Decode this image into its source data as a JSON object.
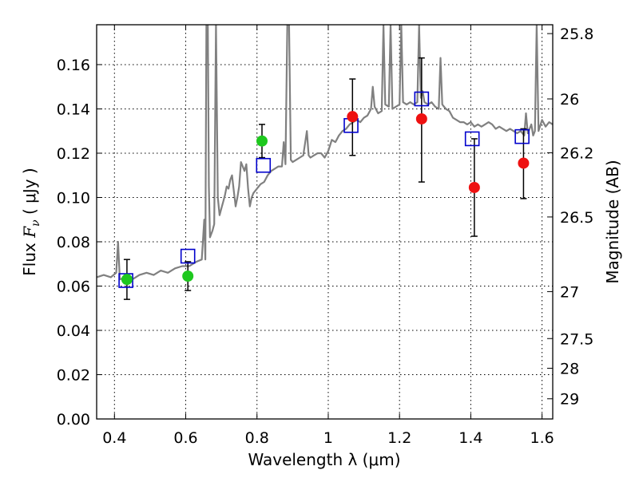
{
  "chart_data": {
    "type": "scatter",
    "xlabel": "Wavelength  λ (μm)",
    "ylabel_prefix": "Flux  ",
    "ylabel_symbol": "F",
    "ylabel_sub": "ν",
    "ylabel_suffix": "  ( μJy )",
    "ylabel_right": "Magnitude (AB)",
    "xlim": [
      0.35,
      1.63
    ],
    "ylim": [
      0.0,
      0.178
    ],
    "grid": true,
    "x_ticks": [
      0.4,
      0.6,
      0.8,
      1.0,
      1.2,
      1.4,
      1.6
    ],
    "x_tick_labels": [
      "0.4",
      "0.6",
      "0.8",
      "1",
      "1.2",
      "1.4",
      "1.6"
    ],
    "y_ticks": [
      0.0,
      0.02,
      0.04,
      0.06,
      0.08,
      0.1,
      0.12,
      0.14,
      0.16
    ],
    "y_tick_labels": [
      "0.00",
      "0.02",
      "0.04",
      "0.06",
      "0.08",
      "0.10",
      "0.12",
      "0.14",
      "0.16"
    ],
    "right_ticks": [
      {
        "label": "25.8",
        "flux": 0.174
      },
      {
        "label": "26",
        "flux": 0.1445
      },
      {
        "label": "26.2",
        "flux": 0.1202
      },
      {
        "label": "26.5",
        "flux": 0.0912
      },
      {
        "label": "27",
        "flux": 0.0575
      },
      {
        "label": "27.5",
        "flux": 0.0363
      },
      {
        "label": "28",
        "flux": 0.0229
      },
      {
        "label": "29",
        "flux": 0.0091
      }
    ],
    "colors": {
      "spectrum": "#808080",
      "green_points": "#1ec81e",
      "red_points": "#ee1111",
      "squares": "#0000cc",
      "errorbars": "#000000",
      "grid": "#000000"
    },
    "spectrum": [
      [
        0.35,
        0.064
      ],
      [
        0.37,
        0.065
      ],
      [
        0.39,
        0.064
      ],
      [
        0.405,
        0.066
      ],
      [
        0.41,
        0.08
      ],
      [
        0.415,
        0.063
      ],
      [
        0.43,
        0.064
      ],
      [
        0.45,
        0.063
      ],
      [
        0.47,
        0.065
      ],
      [
        0.49,
        0.066
      ],
      [
        0.51,
        0.065
      ],
      [
        0.53,
        0.067
      ],
      [
        0.55,
        0.066
      ],
      [
        0.57,
        0.068
      ],
      [
        0.59,
        0.069
      ],
      [
        0.61,
        0.069
      ],
      [
        0.63,
        0.071
      ],
      [
        0.645,
        0.072
      ],
      [
        0.652,
        0.09
      ],
      [
        0.655,
        0.072
      ],
      [
        0.658,
        0.178
      ],
      [
        0.662,
        0.178
      ],
      [
        0.665,
        0.105
      ],
      [
        0.668,
        0.082
      ],
      [
        0.675,
        0.085
      ],
      [
        0.68,
        0.088
      ],
      [
        0.685,
        0.178
      ],
      [
        0.69,
        0.1
      ],
      [
        0.695,
        0.092
      ],
      [
        0.7,
        0.095
      ],
      [
        0.705,
        0.098
      ],
      [
        0.71,
        0.101
      ],
      [
        0.715,
        0.105
      ],
      [
        0.72,
        0.104
      ],
      [
        0.725,
        0.108
      ],
      [
        0.73,
        0.11
      ],
      [
        0.735,
        0.103
      ],
      [
        0.74,
        0.096
      ],
      [
        0.745,
        0.1
      ],
      [
        0.75,
        0.105
      ],
      [
        0.755,
        0.116
      ],
      [
        0.76,
        0.114
      ],
      [
        0.765,
        0.112
      ],
      [
        0.77,
        0.115
      ],
      [
        0.775,
        0.104
      ],
      [
        0.78,
        0.096
      ],
      [
        0.785,
        0.1
      ],
      [
        0.79,
        0.102
      ],
      [
        0.8,
        0.104
      ],
      [
        0.81,
        0.106
      ],
      [
        0.82,
        0.107
      ],
      [
        0.83,
        0.11
      ],
      [
        0.84,
        0.112
      ],
      [
        0.85,
        0.113
      ],
      [
        0.86,
        0.114
      ],
      [
        0.87,
        0.114
      ],
      [
        0.875,
        0.125
      ],
      [
        0.88,
        0.115
      ],
      [
        0.885,
        0.178
      ],
      [
        0.89,
        0.178
      ],
      [
        0.895,
        0.117
      ],
      [
        0.9,
        0.116
      ],
      [
        0.91,
        0.117
      ],
      [
        0.92,
        0.118
      ],
      [
        0.93,
        0.119
      ],
      [
        0.94,
        0.13
      ],
      [
        0.945,
        0.119
      ],
      [
        0.95,
        0.118
      ],
      [
        0.96,
        0.119
      ],
      [
        0.97,
        0.12
      ],
      [
        0.98,
        0.12
      ],
      [
        0.99,
        0.118
      ],
      [
        1.0,
        0.121
      ],
      [
        1.01,
        0.126
      ],
      [
        1.02,
        0.125
      ],
      [
        1.03,
        0.128
      ],
      [
        1.04,
        0.13
      ],
      [
        1.05,
        0.131
      ],
      [
        1.06,
        0.133
      ],
      [
        1.07,
        0.134
      ],
      [
        1.08,
        0.135
      ],
      [
        1.09,
        0.134
      ],
      [
        1.1,
        0.136
      ],
      [
        1.11,
        0.137
      ],
      [
        1.12,
        0.14
      ],
      [
        1.125,
        0.15
      ],
      [
        1.13,
        0.141
      ],
      [
        1.14,
        0.138
      ],
      [
        1.15,
        0.139
      ],
      [
        1.155,
        0.178
      ],
      [
        1.16,
        0.142
      ],
      [
        1.17,
        0.141
      ],
      [
        1.175,
        0.178
      ],
      [
        1.18,
        0.14
      ],
      [
        1.19,
        0.141
      ],
      [
        1.2,
        0.142
      ],
      [
        1.205,
        0.178
      ],
      [
        1.21,
        0.143
      ],
      [
        1.22,
        0.142
      ],
      [
        1.23,
        0.143
      ],
      [
        1.24,
        0.142
      ],
      [
        1.25,
        0.143
      ],
      [
        1.255,
        0.178
      ],
      [
        1.26,
        0.145
      ],
      [
        1.265,
        0.148
      ],
      [
        1.27,
        0.143
      ],
      [
        1.28,
        0.142
      ],
      [
        1.29,
        0.143
      ],
      [
        1.3,
        0.141
      ],
      [
        1.31,
        0.14
      ],
      [
        1.315,
        0.163
      ],
      [
        1.32,
        0.142
      ],
      [
        1.33,
        0.14
      ],
      [
        1.34,
        0.139
      ],
      [
        1.35,
        0.136
      ],
      [
        1.36,
        0.135
      ],
      [
        1.37,
        0.134
      ],
      [
        1.38,
        0.134
      ],
      [
        1.39,
        0.133
      ],
      [
        1.4,
        0.134
      ],
      [
        1.41,
        0.132
      ],
      [
        1.42,
        0.133
      ],
      [
        1.43,
        0.132
      ],
      [
        1.44,
        0.133
      ],
      [
        1.45,
        0.134
      ],
      [
        1.46,
        0.133
      ],
      [
        1.47,
        0.131
      ],
      [
        1.48,
        0.132
      ],
      [
        1.49,
        0.131
      ],
      [
        1.5,
        0.13
      ],
      [
        1.51,
        0.131
      ],
      [
        1.52,
        0.13
      ],
      [
        1.53,
        0.129
      ],
      [
        1.54,
        0.13
      ],
      [
        1.55,
        0.128
      ],
      [
        1.555,
        0.138
      ],
      [
        1.56,
        0.129
      ],
      [
        1.57,
        0.133
      ],
      [
        1.575,
        0.128
      ],
      [
        1.58,
        0.13
      ],
      [
        1.585,
        0.178
      ],
      [
        1.59,
        0.13
      ],
      [
        1.6,
        0.135
      ],
      [
        1.61,
        0.132
      ],
      [
        1.62,
        0.134
      ],
      [
        1.63,
        0.133
      ]
    ],
    "points": [
      {
        "x": 0.435,
        "y": 0.063,
        "err_lo": 0.054,
        "err_hi": 0.072,
        "color": "green"
      },
      {
        "x": 0.606,
        "y": 0.0645,
        "err_lo": 0.058,
        "err_hi": 0.071,
        "color": "green"
      },
      {
        "x": 0.814,
        "y": 0.1255,
        "err_lo": 0.118,
        "err_hi": 0.133,
        "color": "green"
      },
      {
        "x": 1.068,
        "y": 0.1365,
        "err_lo": 0.119,
        "err_hi": 0.1535,
        "color": "red"
      },
      {
        "x": 1.262,
        "y": 0.1355,
        "err_lo": 0.107,
        "err_hi": 0.163,
        "color": "red"
      },
      {
        "x": 1.41,
        "y": 0.1045,
        "err_lo": 0.0825,
        "err_hi": 0.1265,
        "color": "red"
      },
      {
        "x": 1.548,
        "y": 0.1155,
        "err_lo": 0.0995,
        "err_hi": 0.131,
        "color": "red"
      }
    ],
    "squares": [
      {
        "x": 0.432,
        "y": 0.0625
      },
      {
        "x": 0.606,
        "y": 0.0735
      },
      {
        "x": 0.818,
        "y": 0.1145
      },
      {
        "x": 1.064,
        "y": 0.1325
      },
      {
        "x": 1.262,
        "y": 0.1445
      },
      {
        "x": 1.404,
        "y": 0.1265
      },
      {
        "x": 1.544,
        "y": 0.1275
      }
    ]
  }
}
